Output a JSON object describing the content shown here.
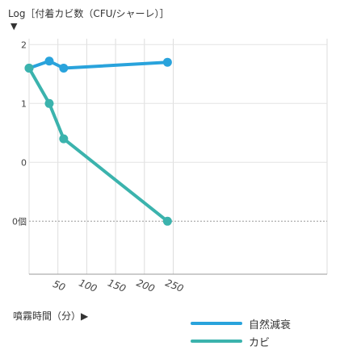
{
  "chart_data": {
    "type": "line",
    "ylabel": "Log［付着カビ数（CFU/シャーレ）］",
    "ylabel_marker": "▼",
    "xlabel": "噴霧時間（分）▶",
    "x_ticks": [
      50,
      100,
      150,
      200,
      250
    ],
    "xlim": [
      0,
      250
    ],
    "y_ticks": [
      {
        "value": 2,
        "label": "2"
      },
      {
        "value": 1,
        "label": "1"
      },
      {
        "value": 0,
        "label": "0"
      },
      {
        "value": -1,
        "label": "0個"
      }
    ],
    "ylim": [
      -1.9,
      2.1
    ],
    "grid": true,
    "legend_position": "bottom-right",
    "series": [
      {
        "name": "自然減衰",
        "color": "#29a3dc",
        "points": [
          [
            0,
            1.6
          ],
          [
            35,
            1.72
          ],
          [
            60,
            1.6
          ],
          [
            240,
            1.7
          ]
        ]
      },
      {
        "name": "カビ",
        "color": "#3bb3ad",
        "points": [
          [
            0,
            1.6
          ],
          [
            35,
            1.0
          ],
          [
            60,
            0.4
          ],
          [
            240,
            -1.0
          ]
        ]
      }
    ]
  }
}
